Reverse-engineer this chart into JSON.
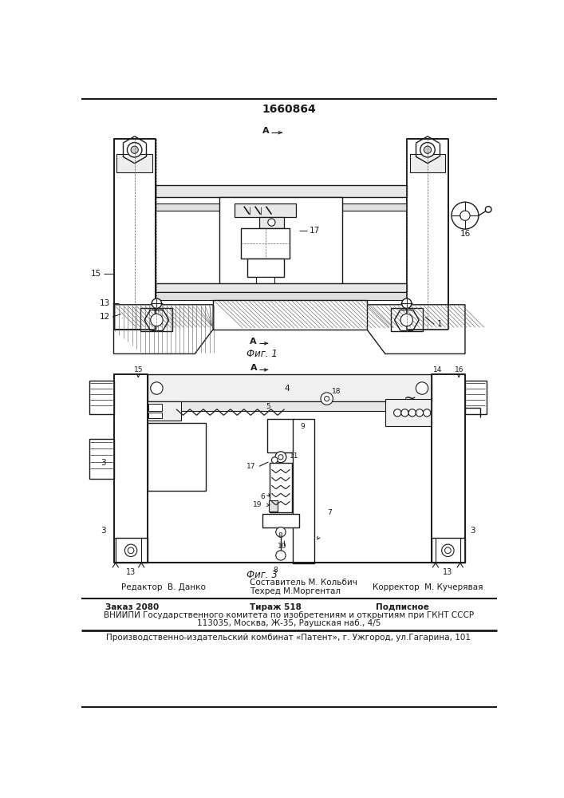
{
  "patent_number": "1660864",
  "fig1_caption": "Фиг. 1",
  "fig3_caption": "Фиг. 3",
  "editor_line": "Редактор  В. Данко",
  "composer_line": "Составитель М. Кольбич",
  "techred_line": "Техред М.Моргентал",
  "corrector_line": "Корректор  М. Кучерявая",
  "order_line": "Заказ 2080",
  "tirazh_line": "Тираж 518",
  "podpisnoe_line": "Подписное",
  "vniiipi_line": "ВНИИПИ Государственного комитета по изобретениям и открытиям при ГКНТ СССР",
  "address_line": "113035, Москва, Ж-35, Раушская наб., 4/5",
  "publisher_line": "Производственно-издательский комбинат «Патент», г. Ужгород, ул.Гагарина, 101",
  "bg_color": "#ffffff",
  "line_color": "#1a1a1a",
  "text_color": "#1a1a1a",
  "hatch_color": "#555555"
}
